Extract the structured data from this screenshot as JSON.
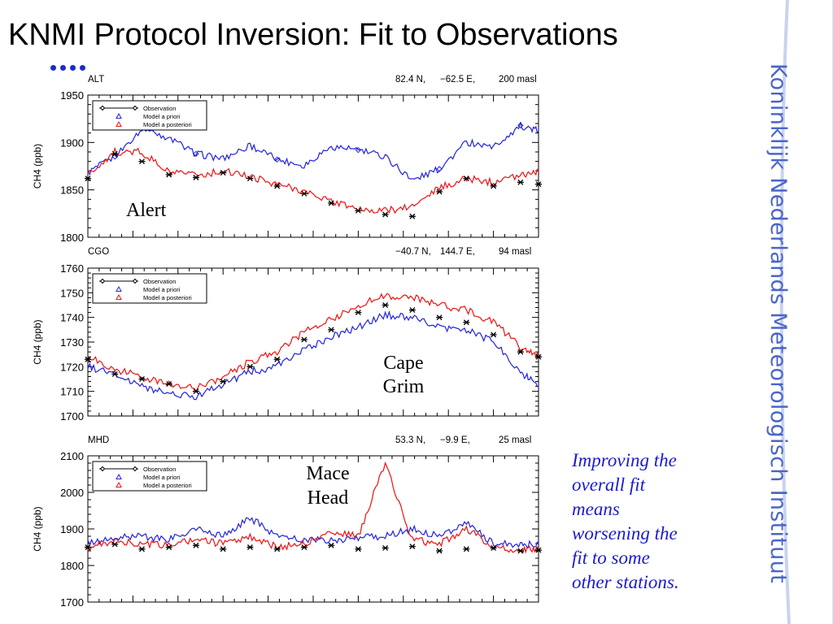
{
  "slide": {
    "title": "KNMI Protocol Inversion: Fit to Observations",
    "institute": "Koninklijk Nederlands Meteorologisch Instituut",
    "note_lines": [
      "Improving the",
      "overall fit",
      "means",
      "worsening the",
      "fit to some",
      "other stations."
    ],
    "colors": {
      "observation": "#000000",
      "model_a_priori": "#2222dd",
      "model_a_posteriori": "#ee1111",
      "accent": "#1a2ad0",
      "sidebar": "#4a66c8"
    }
  },
  "chart_data": [
    {
      "type": "line",
      "station_code": "ALT",
      "station_label": "Alert",
      "location": [
        "82.4 N,",
        "−62.5 E,",
        "200 masl"
      ],
      "ylabel": "CH4 (ppb)",
      "ylim": [
        1800,
        1950
      ],
      "yticks": [
        1800,
        1850,
        1900,
        1950
      ],
      "legend": [
        "Observation",
        "Model a priori",
        "Model a posteriori"
      ],
      "legend_position": "top-left",
      "x": [
        0,
        6,
        12,
        18,
        24,
        30,
        36,
        42,
        48,
        54,
        60,
        66,
        72,
        78,
        84,
        90,
        96,
        100
      ],
      "series": [
        {
          "name": "Model a priori",
          "marker": "diamond",
          "values": [
            1868,
            1885,
            1915,
            1905,
            1888,
            1883,
            1897,
            1882,
            1876,
            1896,
            1892,
            1885,
            1860,
            1872,
            1900,
            1895,
            1918,
            1912
          ]
        },
        {
          "name": "Model a posteriori",
          "marker": "triangle",
          "values": [
            1866,
            1890,
            1890,
            1868,
            1865,
            1870,
            1864,
            1856,
            1849,
            1838,
            1830,
            1828,
            1832,
            1852,
            1862,
            1858,
            1866,
            1870
          ]
        },
        {
          "name": "Observation",
          "marker": "asterisk",
          "values": [
            1862,
            1888,
            1880,
            1866,
            1863,
            1868,
            1862,
            1854,
            1846,
            1836,
            1828,
            1824,
            1822,
            1848,
            1862,
            1854,
            1858,
            1856
          ]
        }
      ]
    },
    {
      "type": "line",
      "station_code": "CGO",
      "station_label": "Cape Grim",
      "location": [
        "−40.7 N,",
        "144.7 E,",
        "94 masl"
      ],
      "ylabel": "CH4 (ppb)",
      "ylim": [
        1700,
        1760
      ],
      "yticks": [
        1700,
        1710,
        1720,
        1730,
        1740,
        1750,
        1760
      ],
      "legend": [
        "Observation",
        "Model a priori",
        "Model a posteriori"
      ],
      "legend_position": "top-left",
      "x": [
        0,
        6,
        12,
        18,
        24,
        30,
        36,
        42,
        48,
        54,
        60,
        66,
        72,
        78,
        84,
        90,
        96,
        100
      ],
      "series": [
        {
          "name": "Model a priori",
          "marker": "triangle",
          "values": [
            1720,
            1717,
            1712,
            1709,
            1708,
            1713,
            1718,
            1720,
            1727,
            1732,
            1736,
            1741,
            1740,
            1736,
            1735,
            1730,
            1718,
            1712
          ]
        },
        {
          "name": "Model a posteriori",
          "marker": "triangle",
          "values": [
            1724,
            1719,
            1716,
            1713,
            1711,
            1716,
            1722,
            1726,
            1734,
            1739,
            1745,
            1749,
            1748,
            1745,
            1743,
            1738,
            1728,
            1724
          ]
        },
        {
          "name": "Observation",
          "marker": "asterisk",
          "values": [
            1723,
            1717,
            1715,
            1713,
            1710,
            1714,
            1720,
            1723,
            1731,
            1735,
            1742,
            1745,
            1743,
            1740,
            1738,
            1733,
            1726,
            1724
          ]
        }
      ]
    },
    {
      "type": "line",
      "station_code": "MHD",
      "station_label": "Mace Head",
      "location": [
        "53.3 N,",
        "−9.9 E,",
        "25 masl"
      ],
      "ylabel": "CH4 (ppb)",
      "ylim": [
        1700,
        2100
      ],
      "yticks": [
        1700,
        1800,
        1900,
        2000,
        2100
      ],
      "legend": [
        "Observation",
        "Model a priori",
        "Model a posteriori"
      ],
      "legend_position": "top-left",
      "x": [
        0,
        6,
        12,
        18,
        24,
        30,
        36,
        42,
        48,
        54,
        60,
        66,
        72,
        78,
        84,
        90,
        96,
        100
      ],
      "series": [
        {
          "name": "Model a priori",
          "marker": "triangle",
          "values": [
            1860,
            1875,
            1880,
            1870,
            1900,
            1880,
            1930,
            1880,
            1870,
            1870,
            1875,
            1880,
            1900,
            1880,
            1920,
            1860,
            1855,
            1860
          ]
        },
        {
          "name": "Model a posteriori",
          "marker": "triangle",
          "values": [
            1850,
            1865,
            1860,
            1855,
            1870,
            1860,
            1880,
            1850,
            1860,
            1890,
            1880,
            2080,
            1870,
            1860,
            1900,
            1850,
            1840,
            1845
          ]
        },
        {
          "name": "Observation",
          "marker": "asterisk",
          "values": [
            1850,
            1858,
            1845,
            1850,
            1855,
            1845,
            1850,
            1845,
            1850,
            1855,
            1845,
            1848,
            1852,
            1840,
            1845,
            1848,
            1840,
            1842
          ]
        }
      ]
    }
  ]
}
